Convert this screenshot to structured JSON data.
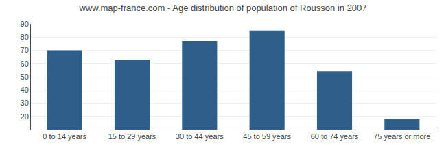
{
  "chart_data": {
    "type": "bar",
    "title": "www.map-france.com - Age distribution of population of Rousson in 2007",
    "categories": [
      "0 to 14 years",
      "15 to 29 years",
      "30 to 44 years",
      "45 to 59 years",
      "60 to 74 years",
      "75 years or more"
    ],
    "values": [
      70,
      63,
      77,
      85,
      54,
      18
    ],
    "color": "#2e5f8a",
    "ylim": [
      10,
      90
    ],
    "yticks": [
      20,
      30,
      40,
      50,
      60,
      70,
      80,
      90
    ],
    "grid": true
  }
}
